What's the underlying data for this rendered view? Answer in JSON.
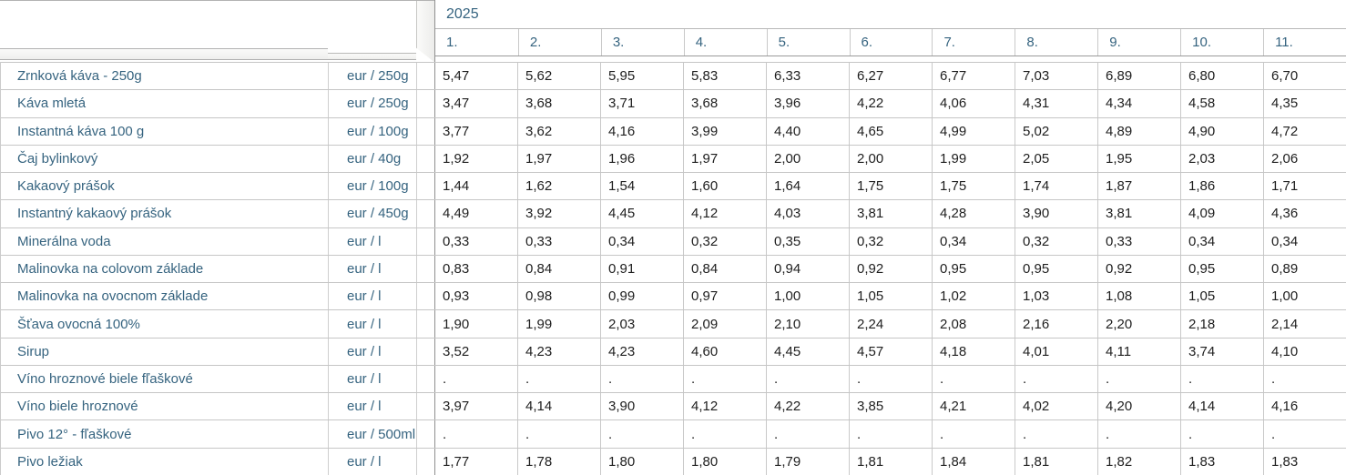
{
  "colors": {
    "accent_header_text": "#35637F",
    "value_text": "#1E1E1E",
    "grid_light": "#C9C9C9",
    "grid_dark": "#8F8F8F",
    "bevel_fill": "#F0F0EE"
  },
  "chart_data": {
    "type": "table",
    "year_header": "2025",
    "columns": [
      "1.",
      "2.",
      "3.",
      "4.",
      "5.",
      "6.",
      "7.",
      "8.",
      "9.",
      "10.",
      "11."
    ],
    "rows": [
      {
        "label": "Zrnková káva - 250g",
        "unit": "eur / 250g",
        "values": [
          "5,47",
          "5,62",
          "5,95",
          "5,83",
          "6,33",
          "6,27",
          "6,77",
          "7,03",
          "6,89",
          "6,80",
          "6,70"
        ]
      },
      {
        "label": "Káva mletá",
        "unit": "eur / 250g",
        "values": [
          "3,47",
          "3,68",
          "3,71",
          "3,68",
          "3,96",
          "4,22",
          "4,06",
          "4,31",
          "4,34",
          "4,58",
          "4,35"
        ]
      },
      {
        "label": "Instantná káva 100 g",
        "unit": "eur / 100g",
        "values": [
          "3,77",
          "3,62",
          "4,16",
          "3,99",
          "4,40",
          "4,65",
          "4,99",
          "5,02",
          "4,89",
          "4,90",
          "4,72"
        ]
      },
      {
        "label": "Čaj bylinkový",
        "unit": "eur / 40g",
        "values": [
          "1,92",
          "1,97",
          "1,96",
          "1,97",
          "2,00",
          "2,00",
          "1,99",
          "2,05",
          "1,95",
          "2,03",
          "2,06"
        ]
      },
      {
        "label": "Kakaový prášok",
        "unit": "eur / 100g",
        "values": [
          "1,44",
          "1,62",
          "1,54",
          "1,60",
          "1,64",
          "1,75",
          "1,75",
          "1,74",
          "1,87",
          "1,86",
          "1,71"
        ]
      },
      {
        "label": "Instantný kakaový prášok",
        "unit": "eur / 450g",
        "values": [
          "4,49",
          "3,92",
          "4,45",
          "4,12",
          "4,03",
          "3,81",
          "4,28",
          "3,90",
          "3,81",
          "4,09",
          "4,36"
        ]
      },
      {
        "label": "Minerálna voda",
        "unit": "eur / l",
        "values": [
          "0,33",
          "0,33",
          "0,34",
          "0,32",
          "0,35",
          "0,32",
          "0,34",
          "0,32",
          "0,33",
          "0,34",
          "0,34"
        ]
      },
      {
        "label": "Malinovka na colovom základe",
        "unit": "eur / l",
        "values": [
          "0,83",
          "0,84",
          "0,91",
          "0,84",
          "0,94",
          "0,92",
          "0,95",
          "0,95",
          "0,92",
          "0,95",
          "0,89"
        ]
      },
      {
        "label": "Malinovka na ovocnom základe",
        "unit": "eur / l",
        "values": [
          "0,93",
          "0,98",
          "0,99",
          "0,97",
          "1,00",
          "1,05",
          "1,02",
          "1,03",
          "1,08",
          "1,05",
          "1,00"
        ]
      },
      {
        "label": "Šťava ovocná 100%",
        "unit": "eur / l",
        "values": [
          "1,90",
          "1,99",
          "2,03",
          "2,09",
          "2,10",
          "2,24",
          "2,08",
          "2,16",
          "2,20",
          "2,18",
          "2,14"
        ]
      },
      {
        "label": "Sirup",
        "unit": "eur / l",
        "values": [
          "3,52",
          "4,23",
          "4,23",
          "4,60",
          "4,45",
          "4,57",
          "4,18",
          "4,01",
          "4,11",
          "3,74",
          "4,10"
        ]
      },
      {
        "label": "Víno hroznové biele fľaškové",
        "unit": "eur / l",
        "values": [
          ".",
          ".",
          ".",
          ".",
          ".",
          ".",
          ".",
          ".",
          ".",
          ".",
          "."
        ]
      },
      {
        "label": "Víno biele hroznové",
        "unit": "eur / l",
        "values": [
          "3,97",
          "4,14",
          "3,90",
          "4,12",
          "4,22",
          "3,85",
          "4,21",
          "4,02",
          "4,20",
          "4,14",
          "4,16"
        ]
      },
      {
        "label": "Pivo 12° - fľaškové",
        "unit": "eur / 500ml",
        "values": [
          ".",
          ".",
          ".",
          ".",
          ".",
          ".",
          ".",
          ".",
          ".",
          ".",
          "."
        ]
      },
      {
        "label": "Pivo ležiak",
        "unit": "eur / l",
        "values": [
          "1,77",
          "1,78",
          "1,80",
          "1,80",
          "1,79",
          "1,81",
          "1,84",
          "1,81",
          "1,82",
          "1,83",
          "1,83"
        ]
      }
    ]
  }
}
